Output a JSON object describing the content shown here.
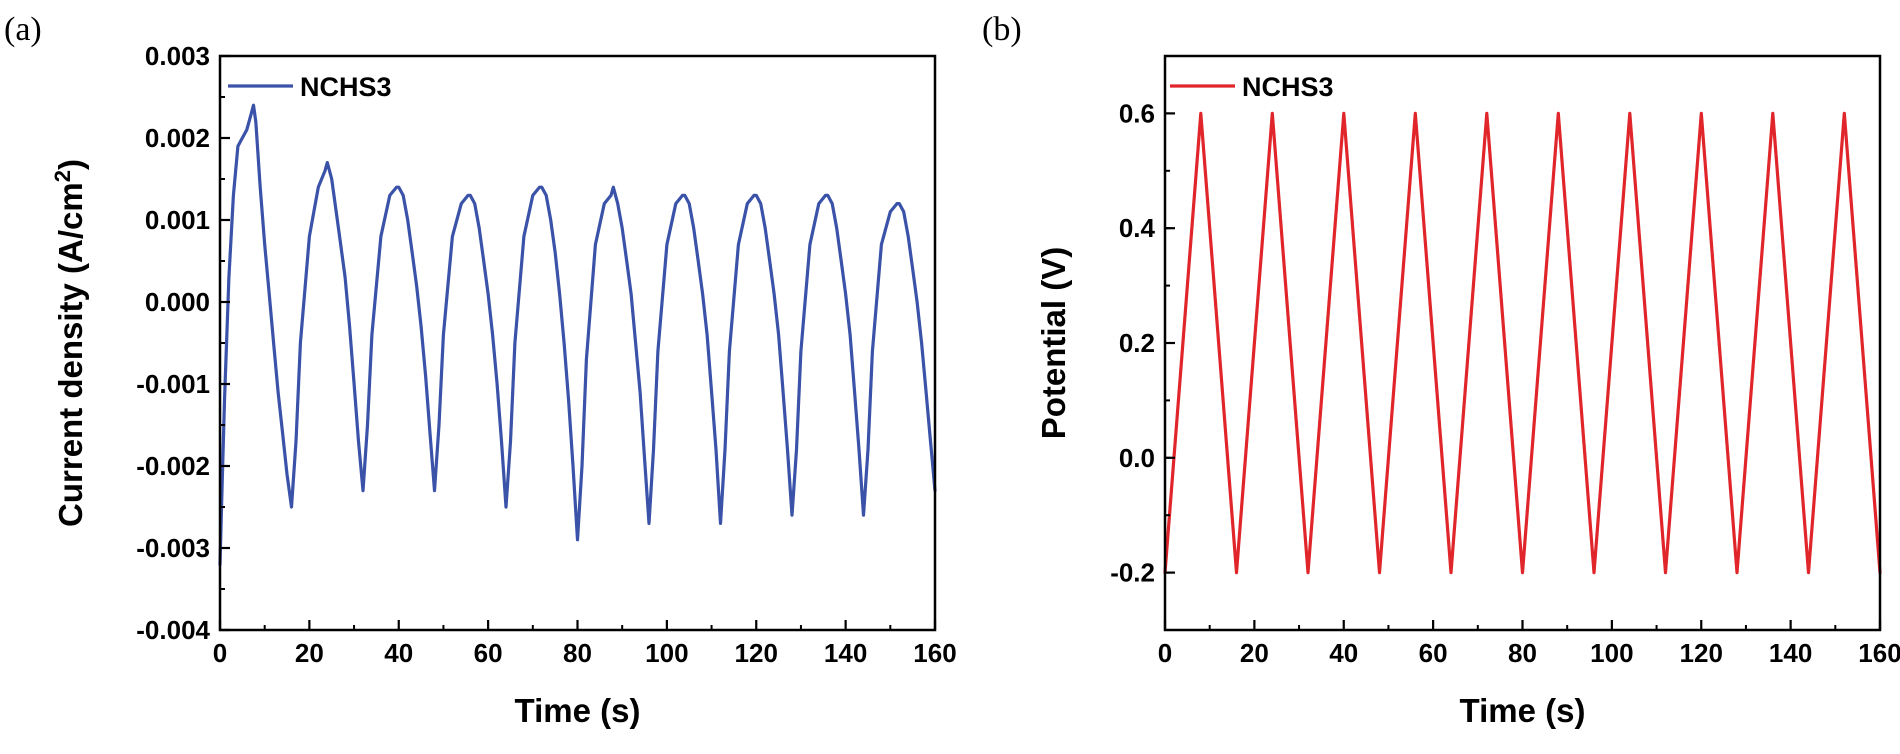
{
  "figure": {
    "panel_a_label": "(a)",
    "panel_b_label": "(b)"
  },
  "chart_data": [
    {
      "type": "line",
      "panel": "(a)",
      "title": "",
      "xlabel": "Time (s)",
      "ylabel": "Current density (A/cm",
      "ylabel_sup": "2",
      "ylabel_tail": ")",
      "xlim": [
        0,
        160
      ],
      "ylim": [
        -0.004,
        0.003
      ],
      "xticks": [
        0,
        20,
        40,
        60,
        80,
        100,
        120,
        140,
        160
      ],
      "xtick_labels": [
        "0",
        "20",
        "40",
        "60",
        "80",
        "100",
        "120",
        "140",
        "160"
      ],
      "yticks": [
        -0.004,
        -0.003,
        -0.002,
        -0.001,
        0.0,
        0.001,
        0.002,
        0.003
      ],
      "ytick_labels": [
        "-0.004",
        "-0.003",
        "-0.002",
        "-0.001",
        "0.000",
        "0.001",
        "0.002",
        "0.003"
      ],
      "legend": "top-left",
      "grid": false,
      "series": [
        {
          "name": "NCHS3",
          "color": "#3a52a8",
          "x": [
            0,
            0.5,
            1,
            2,
            3,
            4,
            5,
            6,
            7,
            7.5,
            8,
            9,
            10,
            11,
            12,
            13,
            14,
            15,
            16,
            17,
            18,
            20,
            22,
            23.5,
            24,
            25,
            26,
            27,
            28,
            29,
            30,
            31,
            32,
            33,
            34,
            36,
            38,
            39.5,
            40,
            41,
            42,
            43,
            44,
            45,
            46,
            47,
            48,
            49,
            50,
            52,
            54,
            55.5,
            56,
            57,
            58,
            59,
            60,
            61,
            62,
            63,
            64,
            65,
            66,
            68,
            70,
            71.5,
            72,
            73,
            74,
            75,
            76,
            77,
            78,
            79,
            80,
            81,
            82,
            84,
            86,
            87.5,
            88,
            89,
            90,
            91,
            92,
            93,
            94,
            95,
            96,
            97,
            98,
            100,
            102,
            103.5,
            104,
            105,
            106,
            107,
            108,
            109,
            110,
            111,
            112,
            113,
            114,
            116,
            118,
            119.5,
            120,
            121,
            122,
            123,
            124,
            125,
            126,
            127,
            128,
            129,
            130,
            132,
            134,
            135.5,
            136,
            137,
            138,
            139,
            140,
            141,
            142,
            143,
            144,
            145,
            146,
            148,
            150,
            151.5,
            152,
            153,
            154,
            155,
            156,
            157,
            158,
            159,
            160
          ],
          "y": [
            -0.0032,
            -0.0022,
            -0.0012,
            0.0003,
            0.0013,
            0.0019,
            0.002,
            0.0021,
            0.0023,
            0.0024,
            0.0022,
            0.0014,
            0.0007,
            0.0001,
            -0.0005,
            -0.0011,
            -0.0016,
            -0.0021,
            -0.0025,
            -0.0017,
            -0.0005,
            0.0008,
            0.0014,
            0.0016,
            0.0017,
            0.0015,
            0.0011,
            0.0007,
            0.0003,
            -0.0003,
            -0.001,
            -0.0017,
            -0.0023,
            -0.0015,
            -0.0004,
            0.0008,
            0.0013,
            0.0014,
            0.0014,
            0.0013,
            0.001,
            0.0006,
            0.0002,
            -0.0003,
            -0.0009,
            -0.0016,
            -0.0023,
            -0.0015,
            -0.0004,
            0.0008,
            0.0012,
            0.0013,
            0.0013,
            0.0012,
            0.0009,
            0.0005,
            0.0001,
            -0.0004,
            -0.001,
            -0.0017,
            -0.0025,
            -0.0017,
            -0.0005,
            0.0008,
            0.0013,
            0.0014,
            0.0014,
            0.0013,
            0.001,
            0.0006,
            0.0001,
            -0.0005,
            -0.0012,
            -0.002,
            -0.0029,
            -0.002,
            -0.0007,
            0.0007,
            0.0012,
            0.0013,
            0.0014,
            0.0012,
            0.0009,
            0.0005,
            0.0001,
            -0.0005,
            -0.0011,
            -0.0019,
            -0.0027,
            -0.0018,
            -0.0006,
            0.0007,
            0.0012,
            0.0013,
            0.0013,
            0.0012,
            0.0009,
            0.0005,
            0.0001,
            -0.0004,
            -0.0011,
            -0.0018,
            -0.0027,
            -0.0018,
            -0.0006,
            0.0007,
            0.0012,
            0.0013,
            0.0013,
            0.0012,
            0.0009,
            0.0005,
            0.0001,
            -0.0004,
            -0.0011,
            -0.0018,
            -0.0026,
            -0.0018,
            -0.0006,
            0.0007,
            0.0012,
            0.0013,
            0.0013,
            0.0012,
            0.0009,
            0.0005,
            0.0001,
            -0.0004,
            -0.0011,
            -0.0018,
            -0.0026,
            -0.0018,
            -0.0006,
            0.0007,
            0.0011,
            0.0012,
            0.0012,
            0.0011,
            0.0008,
            0.0004,
            0.0,
            -0.0005,
            -0.0011,
            -0.0017,
            -0.0023
          ]
        }
      ]
    },
    {
      "type": "line",
      "panel": "(b)",
      "title": "",
      "xlabel": "Time (s)",
      "ylabel": "Potential (V)",
      "xlim": [
        0,
        160
      ],
      "ylim": [
        -0.3,
        0.7
      ],
      "xticks": [
        0,
        20,
        40,
        60,
        80,
        100,
        120,
        140,
        160
      ],
      "xtick_labels": [
        "0",
        "20",
        "40",
        "60",
        "80",
        "100",
        "120",
        "140",
        "160"
      ],
      "yticks": [
        -0.2,
        0.0,
        0.2,
        0.4,
        0.6
      ],
      "ytick_labels": [
        "-0.2",
        "0.0",
        "0.2",
        "0.4",
        "0.6"
      ],
      "legend": "top-left",
      "grid": false,
      "series": [
        {
          "name": "NCHS3",
          "color": "#e0262b",
          "x": [
            0,
            8,
            16,
            24,
            32,
            40,
            48,
            56,
            64,
            72,
            80,
            88,
            96,
            104,
            112,
            120,
            128,
            136,
            144,
            152,
            160
          ],
          "y": [
            -0.2,
            0.6,
            -0.2,
            0.6,
            -0.2,
            0.6,
            -0.2,
            0.6,
            -0.2,
            0.6,
            -0.2,
            0.6,
            -0.2,
            0.6,
            -0.2,
            0.6,
            -0.2,
            0.6,
            -0.2,
            0.6,
            -0.2
          ]
        }
      ]
    }
  ]
}
